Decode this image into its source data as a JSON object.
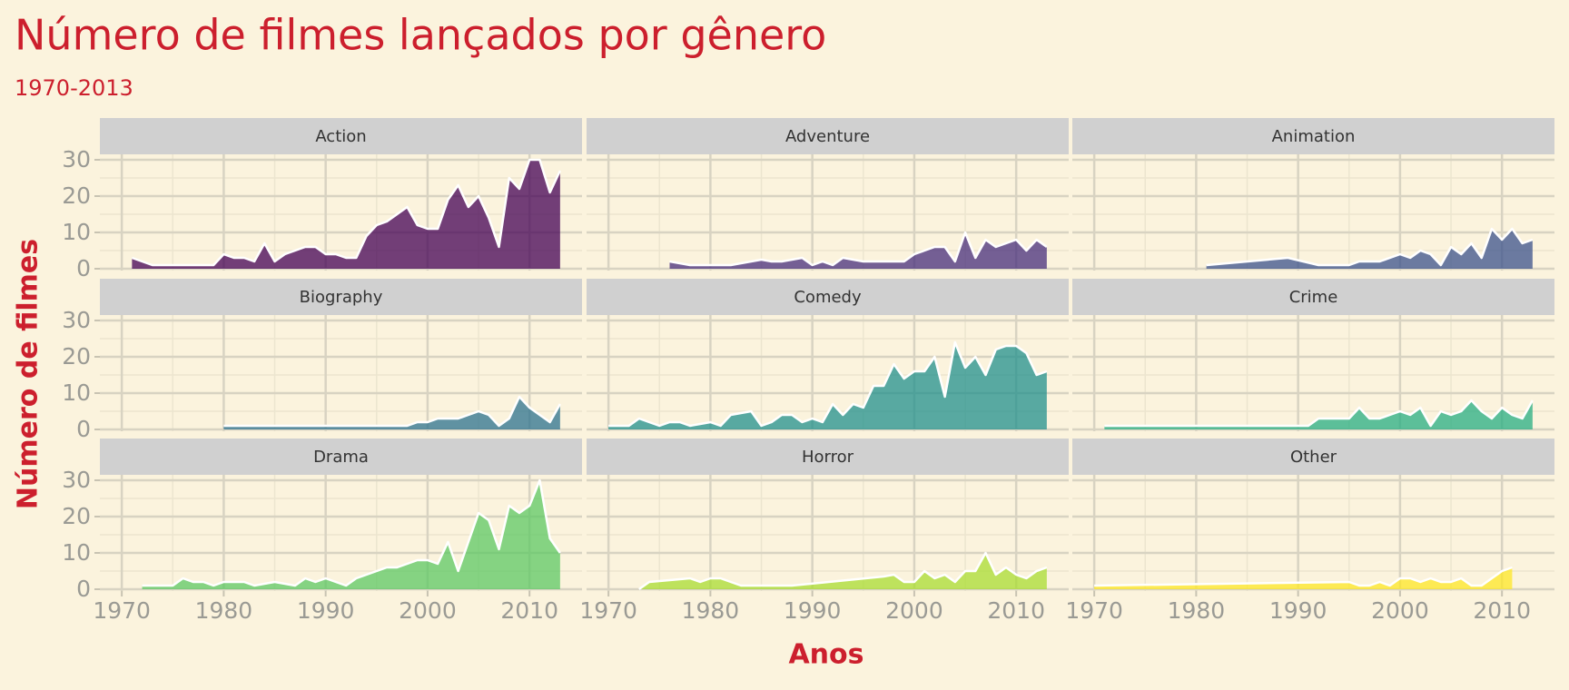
{
  "chart_data": {
    "type": "area",
    "title": "Número de filmes lançados por gênero",
    "subtitle": "1970-2013",
    "x_label": "Anos",
    "y_label": "Número de filmes",
    "xlim": [
      1967.85,
      2015.15
    ],
    "xticks": [
      1970,
      1980,
      1990,
      2000,
      2010
    ],
    "ylim": [
      -0.5,
      31.5
    ],
    "yticks": [
      0,
      10,
      20,
      30
    ],
    "grid": true,
    "series": [
      {
        "name": "Action",
        "color": "#440154",
        "x": [
          1971,
          1972,
          1973,
          1974,
          1975,
          1976,
          1977,
          1978,
          1979,
          1980,
          1981,
          1982,
          1983,
          1984,
          1985,
          1986,
          1987,
          1988,
          1989,
          1990,
          1991,
          1992,
          1993,
          1994,
          1995,
          1996,
          1997,
          1998,
          1999,
          2000,
          2001,
          2002,
          2003,
          2004,
          2005,
          2006,
          2007,
          2008,
          2009,
          2010,
          2011,
          2012,
          2013
        ],
        "values": [
          3,
          2,
          1,
          1,
          1,
          1,
          1,
          1,
          1,
          4,
          3,
          3,
          2,
          7,
          2,
          4,
          5,
          6,
          6,
          4,
          4,
          3,
          3,
          9,
          12,
          13,
          15,
          17,
          12,
          11,
          11,
          19,
          23,
          17,
          20,
          14,
          6,
          25,
          22,
          30,
          30,
          21,
          27
        ]
      },
      {
        "name": "Adventure",
        "color": "#472D7B",
        "x": [
          1976,
          1978,
          1982,
          1985,
          1986,
          1987,
          1988,
          1989,
          1990,
          1991,
          1992,
          1993,
          1994,
          1995,
          1999,
          2000,
          2001,
          2002,
          2003,
          2004,
          2005,
          2006,
          2007,
          2008,
          2009,
          2010,
          2011,
          2012,
          2013
        ],
        "values": [
          2,
          1,
          1,
          2.5,
          2,
          2,
          2.5,
          3,
          1,
          2,
          1,
          3,
          2.5,
          2,
          2,
          4,
          5,
          6,
          6,
          2,
          10,
          3,
          8,
          6,
          7,
          8,
          5,
          8,
          6
        ]
      },
      {
        "name": "Animation",
        "color": "#3B528B",
        "x": [
          1981,
          1989,
          1992,
          1995,
          1996,
          1998,
          2000,
          2001,
          2002,
          2003,
          2004,
          2005,
          2006,
          2007,
          2008,
          2009,
          2010,
          2011,
          2012,
          2013
        ],
        "values": [
          1,
          3,
          1,
          1,
          2,
          2,
          4,
          3,
          5,
          4,
          1,
          6,
          4,
          7,
          3,
          11,
          8,
          11,
          7,
          8
        ]
      },
      {
        "name": "Biography",
        "color": "#2C728E",
        "x": [
          1980,
          1998,
          1999,
          2000,
          2001,
          2002,
          2003,
          2004,
          2005,
          2006,
          2007,
          2008,
          2009,
          2010,
          2011,
          2012,
          2013
        ],
        "values": [
          1,
          1,
          2,
          2,
          3,
          3,
          3,
          4,
          5,
          4,
          1,
          3,
          9,
          6,
          4,
          2,
          7
        ]
      },
      {
        "name": "Comedy",
        "color": "#21908C",
        "x": [
          1970,
          1972,
          1973,
          1974,
          1975,
          1976,
          1977,
          1978,
          1979,
          1980,
          1981,
          1982,
          1983,
          1984,
          1985,
          1986,
          1987,
          1988,
          1989,
          1990,
          1991,
          1992,
          1993,
          1994,
          1995,
          1996,
          1997,
          1998,
          1999,
          2000,
          2001,
          2002,
          2003,
          2004,
          2005,
          2006,
          2007,
          2008,
          2009,
          2010,
          2011,
          2012,
          2013
        ],
        "values": [
          1,
          1,
          3,
          2,
          1,
          2,
          2,
          1,
          1.5,
          2,
          1,
          4,
          4.5,
          5,
          1,
          2,
          4,
          4,
          2,
          3,
          2,
          7,
          4,
          7,
          6,
          12,
          12,
          18,
          14,
          16,
          16,
          20,
          9,
          24,
          17,
          20,
          15,
          22,
          23,
          23,
          21,
          15,
          16
        ]
      },
      {
        "name": "Crime",
        "color": "#27AD81",
        "x": [
          1971,
          1991,
          1992,
          1995,
          1996,
          1997,
          1998,
          1999,
          2000,
          2001,
          2002,
          2003,
          2004,
          2005,
          2006,
          2007,
          2008,
          2009,
          2010,
          2011,
          2012,
          2013
        ],
        "values": [
          1,
          1,
          3,
          3,
          6,
          3,
          3,
          4,
          5,
          4,
          6,
          1,
          5,
          4,
          5,
          8,
          5,
          3,
          6,
          4,
          3,
          8
        ]
      },
      {
        "name": "Drama",
        "color": "#5DC863",
        "x": [
          1972,
          1975,
          1976,
          1977,
          1978,
          1979,
          1980,
          1981,
          1982,
          1983,
          1984,
          1985,
          1986,
          1987,
          1988,
          1989,
          1990,
          1991,
          1992,
          1993,
          1994,
          1995,
          1996,
          1997,
          1998,
          1999,
          2000,
          2001,
          2002,
          2003,
          2004,
          2005,
          2006,
          2007,
          2008,
          2009,
          2010,
          2011,
          2012,
          2013
        ],
        "values": [
          1,
          1,
          3,
          2,
          2,
          1,
          2,
          2,
          2,
          1,
          1.5,
          2,
          1.5,
          1,
          3,
          2,
          3,
          2,
          1,
          3,
          4,
          5,
          6,
          6,
          7,
          8,
          8,
          7,
          13,
          5,
          13,
          21,
          19,
          11,
          23,
          21,
          23,
          30,
          14,
          10
        ]
      },
      {
        "name": "Horror",
        "color": "#AADC32",
        "x": [
          1973,
          1974,
          1978,
          1979,
          1980,
          1981,
          1983,
          1988,
          1997,
          1998,
          1999,
          2000,
          2001,
          2002,
          2003,
          2004,
          2005,
          2006,
          2007,
          2008,
          2009,
          2010,
          2011,
          2012,
          2013
        ],
        "values": [
          0,
          2,
          3,
          2,
          3,
          3,
          1,
          1,
          3.5,
          4,
          2,
          2,
          5,
          3,
          4,
          2,
          5,
          5,
          10,
          4,
          6,
          4,
          3,
          5,
          6
        ]
      },
      {
        "name": "Other",
        "color": "#FDE725",
        "x": [
          1970,
          1995,
          1996,
          1997,
          1998,
          1999,
          2000,
          2001,
          2002,
          2003,
          2004,
          2005,
          2006,
          2007,
          2008,
          2009,
          2010,
          2011
        ],
        "values": [
          1,
          2,
          1,
          1,
          2,
          1,
          3,
          3,
          2,
          3,
          2,
          2,
          3,
          1,
          1,
          3,
          5,
          6
        ]
      }
    ]
  }
}
